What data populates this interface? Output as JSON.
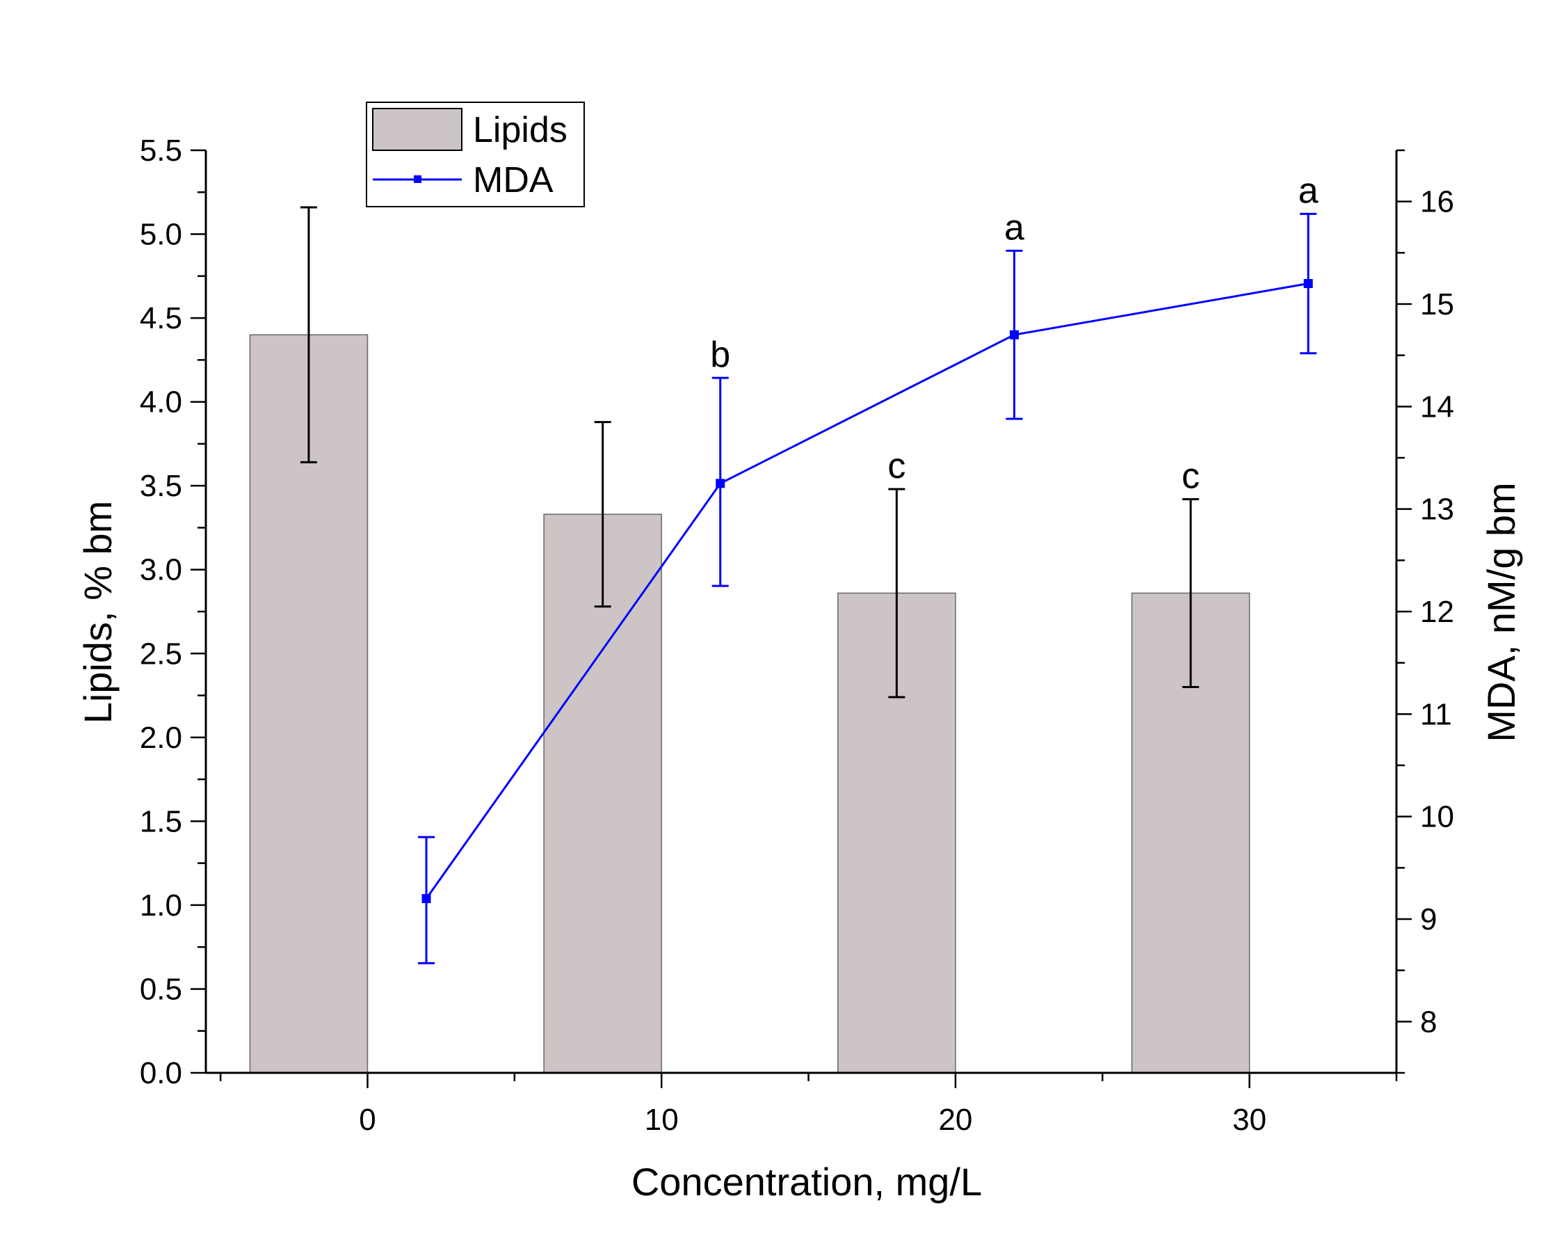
{
  "chart_data": {
    "type": "bar+line",
    "xlabel": "Concentration, mg/L",
    "ylabel_left": "Lipids, % bm",
    "ylabel_right": "MDA, nM/g bm",
    "xlim": [
      -5.5,
      35
    ],
    "ylim_left": [
      0,
      5.5
    ],
    "ylim_right": [
      7.5,
      16.5
    ],
    "x_ticks": [
      0,
      10,
      20,
      30
    ],
    "y_ticks_left": [
      "0.0",
      "0.5",
      "1.0",
      "1.5",
      "2.0",
      "2.5",
      "3.0",
      "3.5",
      "4.0",
      "4.5",
      "5.0",
      "5.5"
    ],
    "y_ticks_right": [
      8,
      9,
      10,
      11,
      12,
      13,
      14,
      15,
      16
    ],
    "legend": [
      {
        "name": "Lipids",
        "kind": "bar"
      },
      {
        "name": "MDA",
        "kind": "line"
      }
    ],
    "legend_position": "top-left",
    "bars": {
      "name": "Lipids",
      "color": "#cdc5c5",
      "width": 4,
      "x": [
        -2,
        8,
        18,
        28
      ],
      "values": [
        4.4,
        3.33,
        2.86,
        2.86
      ],
      "err_high": [
        5.16,
        3.88,
        3.48,
        3.42
      ],
      "err_low": [
        3.64,
        2.78,
        2.24,
        2.3
      ],
      "labels": [
        "",
        "",
        "c",
        "c"
      ]
    },
    "line": {
      "name": "MDA",
      "color": "#0000ff",
      "x": [
        2,
        12,
        22,
        32
      ],
      "values": [
        9.2,
        13.25,
        14.7,
        15.2
      ],
      "err_high": [
        9.8,
        14.28,
        15.52,
        15.88
      ],
      "err_low": [
        8.57,
        12.25,
        13.88,
        14.52
      ],
      "labels": [
        "",
        "b",
        "a",
        "a"
      ]
    }
  }
}
